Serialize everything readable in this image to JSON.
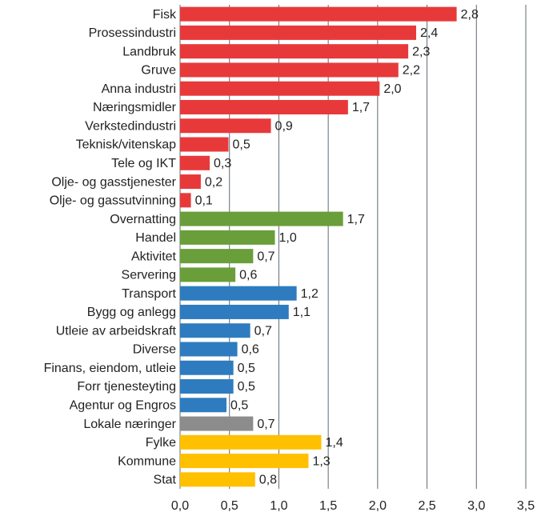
{
  "chart_data": {
    "type": "barh",
    "categories": [
      "Fisk",
      "Prosessindustri",
      "Landbruk",
      "Gruve",
      "Anna industri",
      "Næringsmidler",
      "Verkstedindustri",
      "Teknisk/vitenskap",
      "Tele og IKT",
      "Olje- og gasstjenester",
      "Olje- og gassutvinning",
      "Overnatting",
      "Handel",
      "Aktivitet",
      "Servering",
      "Transport",
      "Bygg og anlegg",
      "Utleie av arbeidskraft",
      "Diverse",
      "Finans, eiendom, utleie",
      "Forr tjenesteyting",
      "Agentur og Engros",
      "Lokale næringer",
      "Fylke",
      "Kommune",
      "Stat"
    ],
    "values": [
      2.8,
      2.39,
      2.31,
      2.21,
      2.02,
      1.7,
      0.92,
      0.49,
      0.3,
      0.21,
      0.11,
      1.65,
      0.96,
      0.74,
      0.56,
      1.18,
      1.1,
      0.71,
      0.58,
      0.54,
      0.54,
      0.47,
      0.74,
      1.43,
      1.3,
      0.76
    ],
    "value_labels": [
      "2,8",
      "2,4",
      "2,3",
      "2,2",
      "2,0",
      "1,7",
      "0,9",
      "0,5",
      "0,3",
      "0,2",
      "0,1",
      "1,7",
      "1,0",
      "0,7",
      "0,6",
      "1,2",
      "1,1",
      "0,7",
      "0,6",
      "0,5",
      "0,5",
      "0,5",
      "0,7",
      "1,4",
      "1,3",
      "0,8"
    ],
    "colors": [
      "#e8393a",
      "#e8393a",
      "#e8393a",
      "#e8393a",
      "#e8393a",
      "#e8393a",
      "#e8393a",
      "#e8393a",
      "#e8393a",
      "#e8393a",
      "#e8393a",
      "#6a9e3a",
      "#6a9e3a",
      "#6a9e3a",
      "#6a9e3a",
      "#2e7cbf",
      "#2e7cbf",
      "#2e7cbf",
      "#2e7cbf",
      "#2e7cbf",
      "#2e7cbf",
      "#2e7cbf",
      "#8c8c8c",
      "#ffc000",
      "#ffc000",
      "#ffc000"
    ],
    "xlim": [
      0,
      3.5
    ],
    "xticks": [
      {
        "value": 0,
        "label": "0,0"
      },
      {
        "value": 0.5,
        "label": "0,5"
      },
      {
        "value": 1,
        "label": "1,0"
      },
      {
        "value": 1.5,
        "label": "1,5"
      },
      {
        "value": 2,
        "label": "2,0"
      },
      {
        "value": 2.5,
        "label": "2,5"
      },
      {
        "value": 3,
        "label": "3,0"
      },
      {
        "value": 3.5,
        "label": "3,5"
      }
    ],
    "grid": true
  }
}
